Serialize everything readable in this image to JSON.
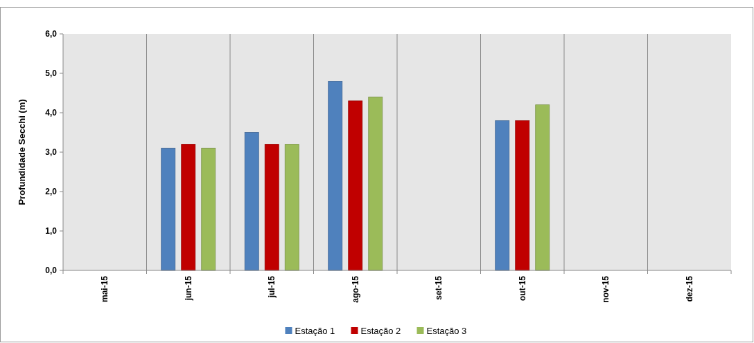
{
  "chart_data": {
    "type": "bar",
    "ylabel": "Profundidade Secchi (m)",
    "categories": [
      "mai-15",
      "jun-15",
      "jul-15",
      "ago-15",
      "set-15",
      "out-15",
      "nov-15",
      "dez-15"
    ],
    "series": [
      {
        "name": "Estação 1",
        "color": "#4f81bd",
        "values": [
          null,
          3.1,
          3.5,
          4.8,
          null,
          3.8,
          null,
          null
        ]
      },
      {
        "name": "Estação 2",
        "color": "#c00000",
        "values": [
          null,
          3.2,
          3.2,
          4.3,
          null,
          3.8,
          null,
          null
        ]
      },
      {
        "name": "Estação 3",
        "color": "#9bbb59",
        "values": [
          null,
          3.1,
          3.2,
          4.4,
          null,
          4.2,
          null,
          null
        ]
      }
    ],
    "ylim": [
      0,
      6
    ],
    "yticks": [
      {
        "value": 0,
        "label": "0,0"
      },
      {
        "value": 1,
        "label": "1,0"
      },
      {
        "value": 2,
        "label": "2,0"
      },
      {
        "value": 3,
        "label": "3,0"
      },
      {
        "value": 4,
        "label": "4,0"
      },
      {
        "value": 5,
        "label": "5,0"
      },
      {
        "value": 6,
        "label": "6,0"
      }
    ],
    "grid": "x",
    "legend": "bottom"
  }
}
